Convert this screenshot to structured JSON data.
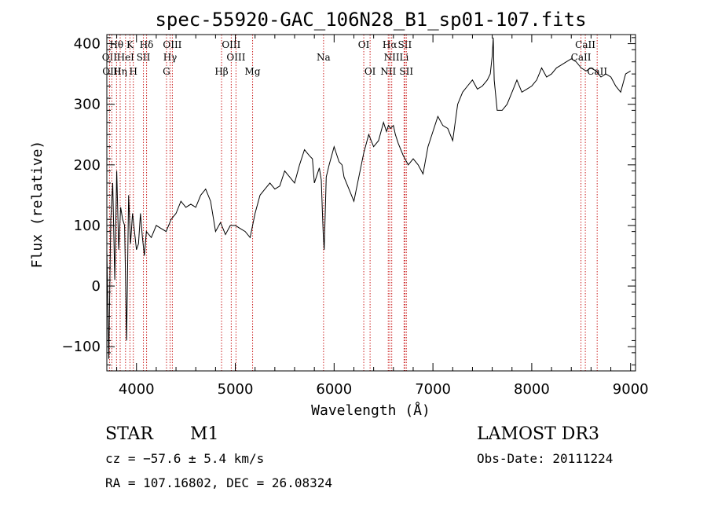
{
  "chart_data": {
    "type": "line",
    "title": "spec-55920-GAC_106N28_B1_sp01-107.fits",
    "xlabel": "Wavelength (Å)",
    "ylabel": "Flux (relative)",
    "xlim": [
      3700,
      9050
    ],
    "ylim": [
      -140,
      415
    ],
    "xticks": [
      4000,
      5000,
      6000,
      7000,
      8000,
      9000
    ],
    "yticks": [
      -100,
      0,
      100,
      200,
      300,
      400
    ],
    "grid": false,
    "series": [
      {
        "color": "#000000",
        "x": [
          3700,
          3720,
          3740,
          3760,
          3780,
          3800,
          3820,
          3840,
          3860,
          3880,
          3900,
          3920,
          3940,
          3960,
          3980,
          4000,
          4020,
          4040,
          4060,
          4080,
          4100,
          4150,
          4200,
          4250,
          4300,
          4350,
          4400,
          4450,
          4500,
          4550,
          4600,
          4650,
          4700,
          4750,
          4800,
          4850,
          4900,
          4950,
          5000,
          5050,
          5100,
          5150,
          5200,
          5250,
          5300,
          5350,
          5400,
          5450,
          5500,
          5550,
          5600,
          5650,
          5700,
          5750,
          5780,
          5800,
          5820,
          5850,
          5870,
          5880,
          5890,
          5900,
          5910,
          5920,
          5950,
          6000,
          6050,
          6080,
          6100,
          6150,
          6200,
          6250,
          6300,
          6350,
          6400,
          6450,
          6500,
          6530,
          6550,
          6570,
          6600,
          6620,
          6650,
          6700,
          6750,
          6800,
          6850,
          6900,
          6950,
          7000,
          7050,
          7100,
          7150,
          7200,
          7250,
          7300,
          7350,
          7400,
          7450,
          7500,
          7550,
          7580,
          7600,
          7610,
          7620,
          7650,
          7700,
          7750,
          7800,
          7850,
          7900,
          7950,
          8000,
          8050,
          8100,
          8150,
          8200,
          8250,
          8300,
          8350,
          8400,
          8450,
          8500,
          8550,
          8600,
          8650,
          8700,
          8750,
          8800,
          8850,
          8900,
          8950,
          9000
        ],
        "y": [
          60,
          -120,
          110,
          170,
          10,
          190,
          60,
          130,
          110,
          100,
          -90,
          150,
          70,
          120,
          90,
          60,
          70,
          120,
          80,
          50,
          90,
          80,
          100,
          95,
          90,
          110,
          120,
          140,
          130,
          135,
          130,
          150,
          160,
          140,
          90,
          105,
          85,
          100,
          100,
          95,
          90,
          80,
          120,
          150,
          160,
          170,
          160,
          165,
          190,
          180,
          170,
          200,
          225,
          215,
          210,
          170,
          180,
          195,
          175,
          130,
          85,
          60,
          120,
          180,
          200,
          230,
          205,
          200,
          180,
          160,
          140,
          180,
          220,
          250,
          230,
          240,
          270,
          255,
          265,
          260,
          265,
          250,
          235,
          215,
          200,
          210,
          200,
          185,
          230,
          255,
          280,
          265,
          260,
          240,
          300,
          320,
          330,
          340,
          325,
          330,
          340,
          350,
          380,
          410,
          340,
          290,
          290,
          300,
          320,
          340,
          320,
          325,
          330,
          340,
          360,
          345,
          350,
          360,
          365,
          370,
          375,
          370,
          360,
          355,
          360,
          355,
          345,
          350,
          345,
          330,
          320,
          350,
          355
        ]
      }
    ],
    "emission_lines": [
      {
        "label": "Hθ",
        "x": 3798,
        "row": 0
      },
      {
        "label": "K",
        "x": 3934,
        "row": 0
      },
      {
        "label": "Hδ",
        "x": 4102,
        "row": 0
      },
      {
        "label": "OIII",
        "x": 4363,
        "row": 0
      },
      {
        "label": "OIII",
        "x": 4959,
        "row": 0
      },
      {
        "label": "OI",
        "x": 6300,
        "row": 0
      },
      {
        "label": "Hα",
        "x": 6563,
        "row": 0
      },
      {
        "label": "SII",
        "x": 6716,
        "row": 0
      },
      {
        "label": "CaII",
        "x": 8542,
        "row": 0
      },
      {
        "label": "OII",
        "x": 3727,
        "row": 1
      },
      {
        "label": "HeI",
        "x": 3889,
        "row": 1
      },
      {
        "label": "SII",
        "x": 4070,
        "row": 1
      },
      {
        "label": "Hγ",
        "x": 4340,
        "row": 1
      },
      {
        "label": "OIII",
        "x": 5007,
        "row": 1
      },
      {
        "label": "Na",
        "x": 5893,
        "row": 1
      },
      {
        "label": "NII",
        "x": 6583,
        "row": 1
      },
      {
        "label": "Li",
        "x": 6708,
        "row": 1
      },
      {
        "label": "CaII",
        "x": 8498,
        "row": 1
      },
      {
        "label": "OIII",
        "x": 3750,
        "row": 2
      },
      {
        "label": "Hη",
        "x": 3835,
        "row": 2
      },
      {
        "label": "H",
        "x": 3968,
        "row": 2
      },
      {
        "label": "G",
        "x": 4304,
        "row": 2
      },
      {
        "label": "Hβ",
        "x": 4861,
        "row": 2
      },
      {
        "label": "Mg",
        "x": 5175,
        "row": 2
      },
      {
        "label": "OI",
        "x": 6364,
        "row": 2
      },
      {
        "label": "NII",
        "x": 6548,
        "row": 2
      },
      {
        "label": "SII",
        "x": 6731,
        "row": 2
      },
      {
        "label": "CaII",
        "x": 8662,
        "row": 2
      }
    ]
  },
  "info": {
    "object_type": "STAR",
    "subclass": "M1",
    "survey": "LAMOST DR3",
    "cz": "cz = −57.6 ± 5.4 km/s",
    "obs_date": "Obs-Date: 20111224",
    "radec": "RA = 107.16802, DEC =  26.08324"
  }
}
